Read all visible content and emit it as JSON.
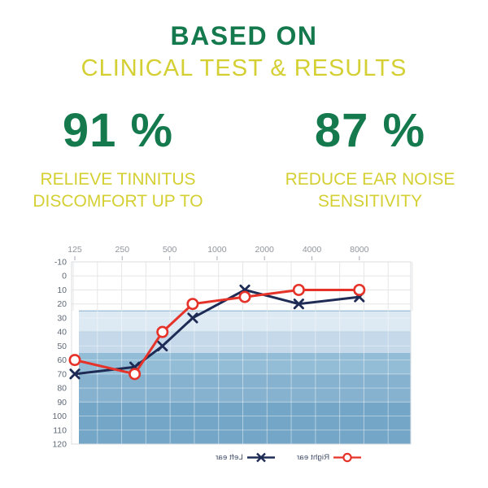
{
  "colors": {
    "green": "#15794e",
    "yellow": "#d4d034",
    "navy": "#1e2b55",
    "red": "#e63329"
  },
  "header": {
    "title": "BASED ON",
    "subtitle": "CLINICAL TEST & RESULTS"
  },
  "stats": {
    "left": {
      "value": "91 %",
      "label_line1": "RELIEVE TINNITUS",
      "label_line2": "DISCOMFORT UP TO"
    },
    "right": {
      "value": "87 %",
      "label_line1": "REDUCE EAR NOISE",
      "label_line2": "SENSITIVITY"
    }
  },
  "chart_data": {
    "type": "line",
    "title": "",
    "description": "Audiogram: hearing threshold (dB) vs frequency (Hz), lower is better",
    "x_axis": {
      "unit": "Hz",
      "scale": "log2",
      "position": "top",
      "ticks": [
        125,
        250,
        500,
        1000,
        2000,
        4000,
        8000
      ],
      "tick_labels": [
        "125",
        "250",
        "500",
        "1000",
        "2000",
        "4000",
        "8000"
      ]
    },
    "y_axis": {
      "unit": "dB",
      "min": -10,
      "max": 120,
      "step": 10,
      "inverted": true,
      "tick_labels": [
        "-10",
        "0",
        "10",
        "20",
        "30",
        "40",
        "50",
        "60",
        "70",
        "80",
        "90",
        "100",
        "110",
        "120"
      ]
    },
    "bands": [
      {
        "name": "mild-loss-band",
        "from_db": 25,
        "to_db": 40,
        "color": "#dde9f3"
      },
      {
        "name": "moderate-loss-band",
        "from_db": 40,
        "to_db": 55,
        "color": "#c5d9ea"
      },
      {
        "name": "mod-severe-loss-band",
        "from_db": 55,
        "to_db": 70,
        "color": "#93bcd6"
      },
      {
        "name": "severe-loss-band",
        "from_db": 70,
        "to_db": 90,
        "color": "#86b2d0"
      },
      {
        "name": "profound-loss-band",
        "from_db": 90,
        "to_db": 120,
        "color": "#74a6c7"
      }
    ],
    "series": [
      {
        "name": "Left ear",
        "marker": "x",
        "color": "#1e2b55",
        "points": [
          {
            "hz": 125,
            "db": 70
          },
          {
            "hz": 300,
            "db": 65
          },
          {
            "hz": 450,
            "db": 50
          },
          {
            "hz": 700,
            "db": 30
          },
          {
            "hz": 1500,
            "db": 10
          },
          {
            "hz": 3300,
            "db": 20
          },
          {
            "hz": 8000,
            "db": 15
          }
        ]
      },
      {
        "name": "Right ear",
        "marker": "o",
        "color": "#e63329",
        "points": [
          {
            "hz": 125,
            "db": 60
          },
          {
            "hz": 300,
            "db": 70
          },
          {
            "hz": 450,
            "db": 40
          },
          {
            "hz": 700,
            "db": 20
          },
          {
            "hz": 1500,
            "db": 15
          },
          {
            "hz": 3300,
            "db": 10
          },
          {
            "hz": 8000,
            "db": 10
          }
        ]
      }
    ],
    "legend": {
      "position": "bottom",
      "text_mirrored": true,
      "display_order": [
        "Left ear",
        "Right ear"
      ]
    }
  }
}
